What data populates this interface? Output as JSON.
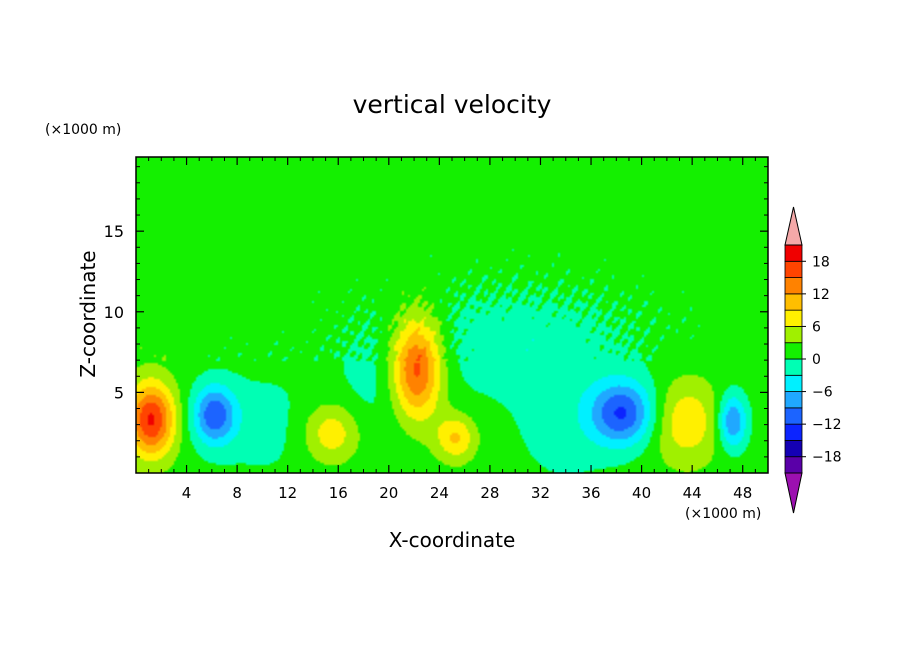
{
  "chart_data": {
    "type": "heatmap",
    "title": "vertical velocity",
    "xlabel": "X-coordinate",
    "ylabel": "Z-coordinate",
    "x_unit_label": "(×1000 m)",
    "y_unit_label": "(×1000 m)",
    "xlim": [
      0,
      50
    ],
    "ylim": [
      0,
      19.6
    ],
    "x_ticks": [
      4,
      8,
      12,
      16,
      20,
      24,
      28,
      32,
      36,
      40,
      44,
      48
    ],
    "x_tick_labels": [
      "4",
      "8",
      "12",
      "16",
      "20",
      "24",
      "28",
      "32",
      "36",
      "40",
      "44",
      "48"
    ],
    "y_ticks": [
      5,
      10,
      15
    ],
    "y_tick_labels": [
      "5",
      "10",
      "15"
    ],
    "colorbar": {
      "levels": [
        -21,
        -18,
        -15,
        -12,
        -9,
        -6,
        -3,
        0,
        3,
        6,
        9,
        12,
        15,
        18,
        21
      ],
      "tick_values": [
        -18,
        -12,
        -6,
        0,
        6,
        12,
        18
      ],
      "tick_labels": [
        "−18",
        "−12",
        "−6",
        "0",
        "6",
        "12",
        "18"
      ],
      "colors": [
        "#5a00a8",
        "#1400b4",
        "#0c24ff",
        "#1c64ff",
        "#20a8ff",
        "#00f0ff",
        "#00ffb4",
        "#14f000",
        "#a0f000",
        "#fff000",
        "#ffbe00",
        "#ff8200",
        "#ff4400",
        "#f00000"
      ],
      "under_color": "#9c10b0",
      "over_color": "#f4a8a8"
    },
    "features": [
      {
        "x": 1.2,
        "z": 3.3,
        "peak": 17
      },
      {
        "x": 6.2,
        "z": 3.6,
        "peak": -12
      },
      {
        "x": 15.5,
        "z": 2.5,
        "peak": 7
      },
      {
        "x": 22.2,
        "z": 6.5,
        "peak": 16
      },
      {
        "x": 25.3,
        "z": 2.2,
        "peak": 8
      },
      {
        "x": 38.5,
        "z": 3.7,
        "peak": -13
      },
      {
        "x": 43.5,
        "z": 3.2,
        "peak": 7
      },
      {
        "x": 47.2,
        "z": 3.2,
        "peak": -11
      }
    ]
  }
}
